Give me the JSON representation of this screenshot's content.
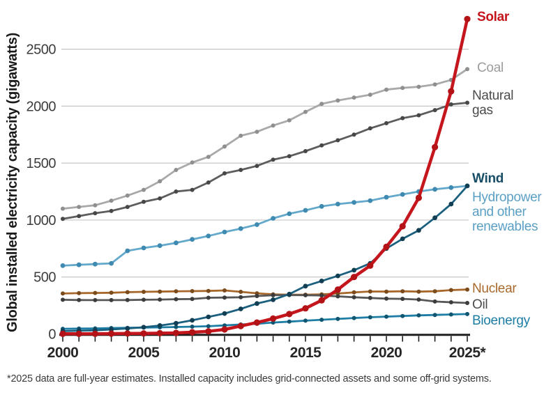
{
  "footnote": "*2025 data are full-year estimates. Installed capacity includes grid-connected assets and some off-grid systems.",
  "chart_data": {
    "type": "line",
    "title": "",
    "xlabel": "",
    "ylabel": "Global installed electricity capacity (gigawatts)",
    "x": [
      2000,
      2001,
      2002,
      2003,
      2004,
      2005,
      2006,
      2007,
      2008,
      2009,
      2010,
      2011,
      2012,
      2013,
      2014,
      2015,
      2016,
      2017,
      2018,
      2019,
      2020,
      2021,
      2022,
      2023,
      2024,
      2025
    ],
    "x_tick_labels": [
      "2000",
      "2005",
      "2010",
      "2015",
      "2020",
      "2025*"
    ],
    "x_tick_years": [
      2000,
      2005,
      2010,
      2015,
      2020,
      2025
    ],
    "ylim": [
      0,
      2800
    ],
    "y_ticks": [
      0,
      500,
      1000,
      1500,
      2000,
      2500
    ],
    "grid": "horizontal",
    "legend_position": "right-of-line-ends",
    "series": [
      {
        "id": "coal",
        "label_lines": [
          "Coal"
        ],
        "bold": false,
        "color": "#a9a9a9",
        "dot_color": "#8f8f8f",
        "label_color": "#9c9c9c",
        "values": [
          1100,
          1115,
          1130,
          1170,
          1215,
          1265,
          1340,
          1440,
          1505,
          1555,
          1645,
          1740,
          1775,
          1830,
          1875,
          1950,
          2020,
          2050,
          2075,
          2100,
          2145,
          2160,
          2170,
          2190,
          2230,
          2325
        ]
      },
      {
        "id": "gas",
        "label_lines": [
          "Natural",
          "gas"
        ],
        "bold": false,
        "color": "#5d5d5d",
        "dot_color": "#474747",
        "label_color": "#4c4c4c",
        "values": [
          1010,
          1035,
          1060,
          1080,
          1115,
          1160,
          1190,
          1250,
          1265,
          1330,
          1410,
          1440,
          1475,
          1530,
          1560,
          1605,
          1655,
          1700,
          1750,
          1805,
          1850,
          1895,
          1920,
          1965,
          2015,
          2030
        ]
      },
      {
        "id": "hydro",
        "label_lines": [
          "Hydropower",
          "and other",
          "renewables"
        ],
        "bold": false,
        "color": "#64a9cc",
        "dot_color": "#3e8ab0",
        "label_color": "#5a9fc4",
        "values": [
          600,
          607,
          613,
          620,
          730,
          755,
          775,
          800,
          830,
          860,
          895,
          925,
          960,
          1015,
          1055,
          1085,
          1120,
          1140,
          1155,
          1170,
          1200,
          1225,
          1250,
          1270,
          1285,
          1300
        ]
      },
      {
        "id": "nuclear",
        "label_lines": [
          "Nuclear"
        ],
        "bold": false,
        "color": "#a8682b",
        "dot_color": "#7c4b1c",
        "label_color": "#a8682b",
        "values": [
          355,
          358,
          360,
          362,
          367,
          370,
          372,
          374,
          376,
          378,
          382,
          370,
          357,
          348,
          344,
          345,
          348,
          355,
          365,
          373,
          372,
          375,
          372,
          375,
          385,
          390
        ]
      },
      {
        "id": "oil",
        "label_lines": [
          "Oil"
        ],
        "bold": false,
        "color": "#575757",
        "dot_color": "#3c3c3c",
        "label_color": "#4c4c4c",
        "values": [
          300,
          298,
          297,
          297,
          298,
          300,
          302,
          305,
          307,
          318,
          320,
          322,
          333,
          340,
          342,
          340,
          338,
          330,
          322,
          316,
          310,
          308,
          302,
          285,
          278,
          272
        ]
      },
      {
        "id": "bioenergy",
        "label_lines": [
          "Bioenergy"
        ],
        "bold": false,
        "color": "#1d7da4",
        "dot_color": "#115671",
        "label_color": "#1d7da4",
        "values": [
          45,
          47,
          49,
          52,
          54,
          56,
          58,
          61,
          64,
          68,
          75,
          83,
          90,
          100,
          108,
          117,
          125,
          132,
          140,
          147,
          152,
          158,
          163,
          167,
          171,
          175
        ]
      },
      {
        "id": "wind",
        "label_lines": [
          "Wind"
        ],
        "bold": true,
        "color": "#1b607f",
        "dot_color": "#113e53",
        "label_color": "#174e66",
        "values": [
          25,
          28,
          32,
          40,
          48,
          59,
          74,
          94,
          120,
          150,
          180,
          220,
          267,
          300,
          350,
          420,
          465,
          510,
          560,
          620,
          750,
          835,
          910,
          1020,
          1140,
          1300
        ]
      },
      {
        "id": "solar",
        "label_lines": [
          "Solar"
        ],
        "bold": true,
        "color": "#c4161c",
        "dot_color": "#b31217",
        "label_color": "#c4161c",
        "values": [
          1,
          1,
          2,
          3,
          4,
          5,
          7,
          9,
          15,
          23,
          40,
          70,
          100,
          135,
          175,
          225,
          295,
          390,
          500,
          600,
          765,
          945,
          1195,
          1640,
          2130,
          2765
        ]
      }
    ]
  }
}
